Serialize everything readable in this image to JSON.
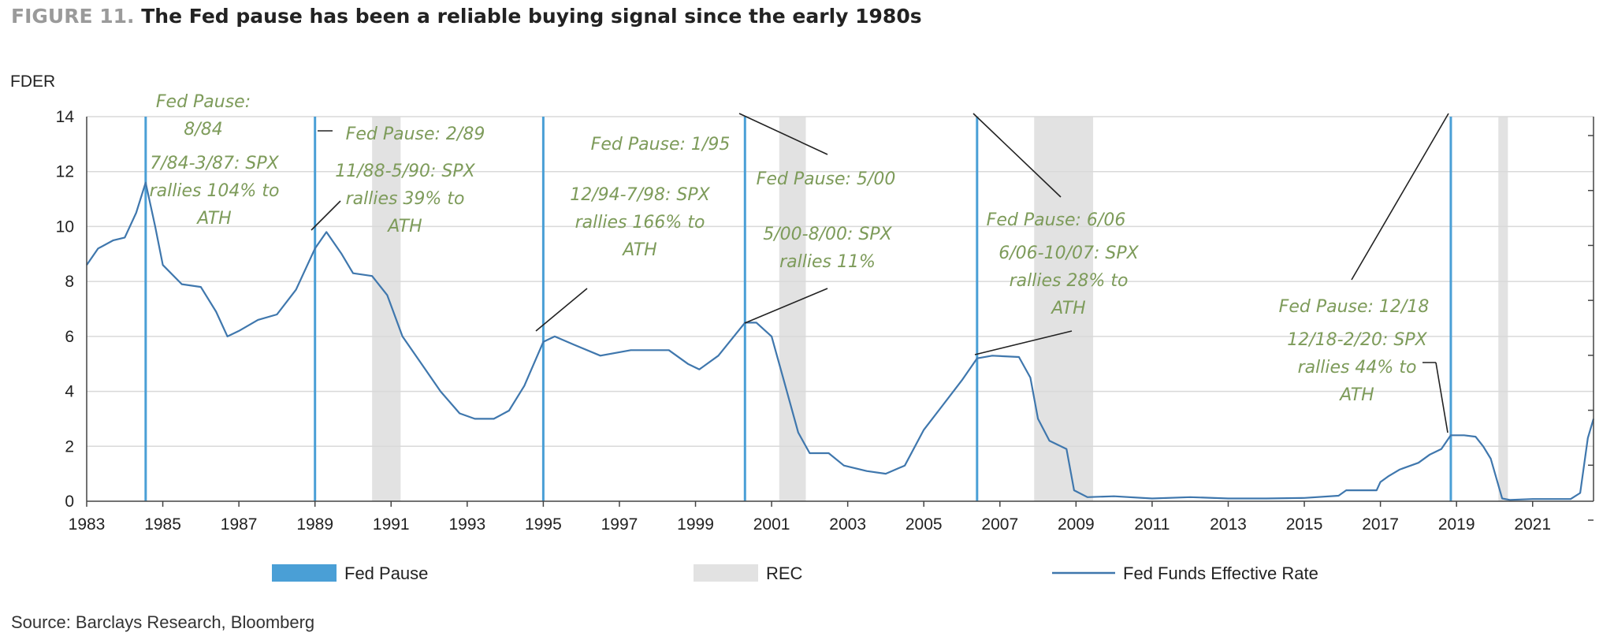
{
  "header": {
    "figure_label": "FIGURE 11.",
    "title": "The Fed pause has been a reliable buying signal since the early 1980s"
  },
  "source": "Source: Barclays Research, Bloomberg",
  "colors": {
    "line": "#3f77ad",
    "pause": "#4a9fd6",
    "recession": "#e2e2e2",
    "annotation": "#7d9b5a",
    "grid": "#d9d9d9"
  },
  "chart_data": {
    "type": "line",
    "ylabel": "FDER",
    "xlim": [
      1983,
      2022.6
    ],
    "ylim": [
      0,
      14
    ],
    "yticks": [
      0,
      2,
      4,
      6,
      8,
      10,
      12,
      14
    ],
    "xticks": [
      1983,
      1985,
      1987,
      1989,
      1991,
      1993,
      1995,
      1997,
      1999,
      2001,
      2003,
      2005,
      2007,
      2009,
      2011,
      2013,
      2015,
      2017,
      2019,
      2021
    ],
    "grid": "horizontal",
    "legend": {
      "position": "bottom",
      "entries": [
        {
          "key": "pause",
          "label": "Fed Pause"
        },
        {
          "key": "rec",
          "label": "REC"
        },
        {
          "key": "rate",
          "label": "Fed Funds Effective Rate"
        }
      ]
    },
    "fed_pauses": [
      1984.55,
      1989.0,
      1995.0,
      2000.3,
      2006.4,
      2018.85
    ],
    "recessions": [
      [
        1990.5,
        1991.25
      ],
      [
        2001.2,
        2001.9
      ],
      [
        2007.9,
        2009.45
      ],
      [
        2020.1,
        2020.35
      ]
    ],
    "series": [
      {
        "key": "rate",
        "x": [
          1983.0,
          1983.3,
          1983.7,
          1984.0,
          1984.3,
          1984.55,
          1984.8,
          1985.0,
          1985.5,
          1986.0,
          1986.4,
          1986.7,
          1987.0,
          1987.5,
          1988.0,
          1988.5,
          1989.0,
          1989.3,
          1989.7,
          1990.0,
          1990.5,
          1990.9,
          1991.3,
          1991.8,
          1992.3,
          1992.8,
          1993.2,
          1993.7,
          1994.1,
          1994.5,
          1995.0,
          1995.3,
          1995.8,
          1996.5,
          1997.3,
          1998.3,
          1998.8,
          1999.1,
          1999.6,
          2000.3,
          2000.6,
          2001.0,
          2001.3,
          2001.7,
          2002.0,
          2002.5,
          2002.9,
          2003.5,
          2004.0,
          2004.5,
          2005.0,
          2005.5,
          2006.0,
          2006.4,
          2006.8,
          2007.5,
          2007.8,
          2008.0,
          2008.3,
          2008.75,
          2008.95,
          2009.3,
          2010.0,
          2011.0,
          2012.0,
          2013.0,
          2014.0,
          2015.0,
          2015.9,
          2016.1,
          2016.9,
          2017.0,
          2017.2,
          2017.5,
          2018.0,
          2018.3,
          2018.6,
          2018.85,
          2019.2,
          2019.5,
          2019.7,
          2019.9,
          2020.2,
          2020.4,
          2021.0,
          2022.0,
          2022.25,
          2022.45,
          2022.6
        ],
        "y": [
          8.6,
          9.2,
          9.5,
          9.6,
          10.5,
          11.6,
          10.0,
          8.6,
          7.9,
          7.8,
          6.9,
          6.0,
          6.2,
          6.6,
          6.8,
          7.7,
          9.2,
          9.8,
          9.0,
          8.3,
          8.2,
          7.5,
          6.0,
          5.0,
          4.0,
          3.2,
          3.0,
          3.0,
          3.3,
          4.2,
          5.8,
          6.0,
          5.7,
          5.3,
          5.5,
          5.5,
          5.0,
          4.8,
          5.3,
          6.5,
          6.5,
          6.0,
          4.5,
          2.5,
          1.75,
          1.75,
          1.3,
          1.1,
          1.0,
          1.3,
          2.6,
          3.5,
          4.4,
          5.2,
          5.3,
          5.25,
          4.5,
          3.0,
          2.2,
          1.9,
          0.4,
          0.15,
          0.18,
          0.1,
          0.15,
          0.1,
          0.1,
          0.12,
          0.2,
          0.4,
          0.4,
          0.7,
          0.9,
          1.15,
          1.4,
          1.7,
          1.9,
          2.4,
          2.4,
          2.35,
          2.0,
          1.55,
          0.1,
          0.05,
          0.08,
          0.08,
          0.3,
          2.3,
          3.0
        ]
      }
    ],
    "annotations": [
      {
        "lines": [
          "Fed Pause:",
          "8/84"
        ]
      },
      {
        "lines": [
          "7/84-3/87: SPX",
          "rallies 104% to",
          "ATH"
        ]
      },
      {
        "lines": [
          "Fed Pause: 2/89"
        ]
      },
      {
        "lines": [
          "11/88-5/90: SPX",
          "rallies 39% to",
          "ATH"
        ]
      },
      {
        "lines": [
          "Fed Pause: 1/95"
        ]
      },
      {
        "lines": [
          "12/94-7/98: SPX",
          "rallies 166% to",
          "ATH"
        ]
      },
      {
        "lines": [
          "Fed Pause: 5/00"
        ]
      },
      {
        "lines": [
          "5/00-8/00: SPX",
          "rallies 11%"
        ]
      },
      {
        "lines": [
          "Fed Pause:  6/06"
        ]
      },
      {
        "lines": [
          "6/06-10/07: SPX",
          "rallies 28% to",
          "ATH"
        ]
      },
      {
        "lines": [
          "Fed Pause: 12/18"
        ]
      },
      {
        "lines": [
          "12/18-2/20: SPX",
          "rallies 44% to",
          "ATH"
        ]
      }
    ]
  }
}
